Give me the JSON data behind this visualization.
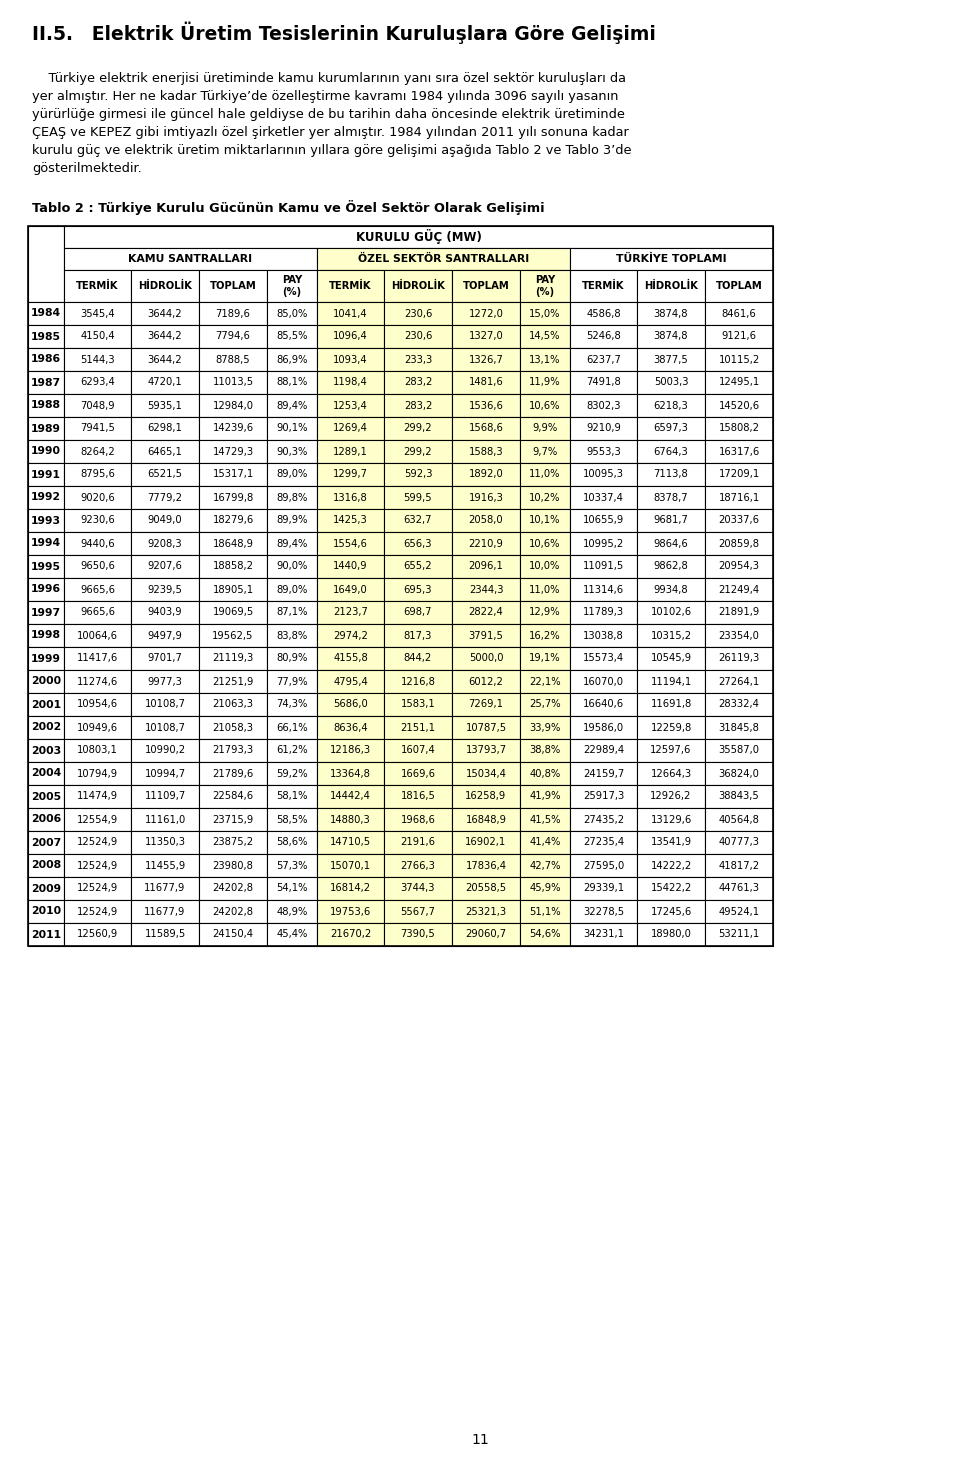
{
  "title": "II.5. Elektrik Üretim Tesislerinin Kuruluşlara Göre Gelişimi",
  "para1": "    Türkiye elektrik enerjisi üretiminde kamu kurumlarının yanı sıra özel sektör kuruluşları da",
  "para2": "yer almıştır. Her ne kadar Türkiye’de özelleştirme kavramı 1984 yılında 3096 sayılı yasanın",
  "para3": "yürürlüğe girmesi ile güncel hale geldiyse de bu tarihin daha öncesinde elektrik üretiminde",
  "para4": "ÇEAŞ ve KEPEZ gibi imtiyazlı özel şirketler yer almıştır. 1984 yılından 2011 yılı sonuna kadar",
  "para5": "kurulu güç ve elektrik üretim miktarlarının yıllara göre gelişimi aşağıda Tablo 2 ve Tablo 3’de",
  "para6": "gösterilmektedir.",
  "table_title": "Tablo 2 : Türkiye Kurulu Gücünün Kamu ve Özel Sektör Olarak Gelişimi",
  "header_main": "KURULU GÜÇ (MW)",
  "header_kamu": "KAMU SANTRALLARI",
  "header_ozel": "ÖZEL SEKTÖR SANTRALLARI",
  "header_turkiye": "TÜRKİYE TOPLAMI",
  "years": [
    1984,
    1985,
    1986,
    1987,
    1988,
    1989,
    1990,
    1991,
    1992,
    1993,
    1994,
    1995,
    1996,
    1997,
    1998,
    1999,
    2000,
    2001,
    2002,
    2003,
    2004,
    2005,
    2006,
    2007,
    2008,
    2009,
    2010,
    2011
  ],
  "data": [
    [
      "3545,4",
      "3644,2",
      "7189,6",
      "85,0%",
      "1041,4",
      "230,6",
      "1272,0",
      "15,0%",
      "4586,8",
      "3874,8",
      "8461,6"
    ],
    [
      "4150,4",
      "3644,2",
      "7794,6",
      "85,5%",
      "1096,4",
      "230,6",
      "1327,0",
      "14,5%",
      "5246,8",
      "3874,8",
      "9121,6"
    ],
    [
      "5144,3",
      "3644,2",
      "8788,5",
      "86,9%",
      "1093,4",
      "233,3",
      "1326,7",
      "13,1%",
      "6237,7",
      "3877,5",
      "10115,2"
    ],
    [
      "6293,4",
      "4720,1",
      "11013,5",
      "88,1%",
      "1198,4",
      "283,2",
      "1481,6",
      "11,9%",
      "7491,8",
      "5003,3",
      "12495,1"
    ],
    [
      "7048,9",
      "5935,1",
      "12984,0",
      "89,4%",
      "1253,4",
      "283,2",
      "1536,6",
      "10,6%",
      "8302,3",
      "6218,3",
      "14520,6"
    ],
    [
      "7941,5",
      "6298,1",
      "14239,6",
      "90,1%",
      "1269,4",
      "299,2",
      "1568,6",
      "9,9%",
      "9210,9",
      "6597,3",
      "15808,2"
    ],
    [
      "8264,2",
      "6465,1",
      "14729,3",
      "90,3%",
      "1289,1",
      "299,2",
      "1588,3",
      "9,7%",
      "9553,3",
      "6764,3",
      "16317,6"
    ],
    [
      "8795,6",
      "6521,5",
      "15317,1",
      "89,0%",
      "1299,7",
      "592,3",
      "1892,0",
      "11,0%",
      "10095,3",
      "7113,8",
      "17209,1"
    ],
    [
      "9020,6",
      "7779,2",
      "16799,8",
      "89,8%",
      "1316,8",
      "599,5",
      "1916,3",
      "10,2%",
      "10337,4",
      "8378,7",
      "18716,1"
    ],
    [
      "9230,6",
      "9049,0",
      "18279,6",
      "89,9%",
      "1425,3",
      "632,7",
      "2058,0",
      "10,1%",
      "10655,9",
      "9681,7",
      "20337,6"
    ],
    [
      "9440,6",
      "9208,3",
      "18648,9",
      "89,4%",
      "1554,6",
      "656,3",
      "2210,9",
      "10,6%",
      "10995,2",
      "9864,6",
      "20859,8"
    ],
    [
      "9650,6",
      "9207,6",
      "18858,2",
      "90,0%",
      "1440,9",
      "655,2",
      "2096,1",
      "10,0%",
      "11091,5",
      "9862,8",
      "20954,3"
    ],
    [
      "9665,6",
      "9239,5",
      "18905,1",
      "89,0%",
      "1649,0",
      "695,3",
      "2344,3",
      "11,0%",
      "11314,6",
      "9934,8",
      "21249,4"
    ],
    [
      "9665,6",
      "9403,9",
      "19069,5",
      "87,1%",
      "2123,7",
      "698,7",
      "2822,4",
      "12,9%",
      "11789,3",
      "10102,6",
      "21891,9"
    ],
    [
      "10064,6",
      "9497,9",
      "19562,5",
      "83,8%",
      "2974,2",
      "817,3",
      "3791,5",
      "16,2%",
      "13038,8",
      "10315,2",
      "23354,0"
    ],
    [
      "11417,6",
      "9701,7",
      "21119,3",
      "80,9%",
      "4155,8",
      "844,2",
      "5000,0",
      "19,1%",
      "15573,4",
      "10545,9",
      "26119,3"
    ],
    [
      "11274,6",
      "9977,3",
      "21251,9",
      "77,9%",
      "4795,4",
      "1216,8",
      "6012,2",
      "22,1%",
      "16070,0",
      "11194,1",
      "27264,1"
    ],
    [
      "10954,6",
      "10108,7",
      "21063,3",
      "74,3%",
      "5686,0",
      "1583,1",
      "7269,1",
      "25,7%",
      "16640,6",
      "11691,8",
      "28332,4"
    ],
    [
      "10949,6",
      "10108,7",
      "21058,3",
      "66,1%",
      "8636,4",
      "2151,1",
      "10787,5",
      "33,9%",
      "19586,0",
      "12259,8",
      "31845,8"
    ],
    [
      "10803,1",
      "10990,2",
      "21793,3",
      "61,2%",
      "12186,3",
      "1607,4",
      "13793,7",
      "38,8%",
      "22989,4",
      "12597,6",
      "35587,0"
    ],
    [
      "10794,9",
      "10994,7",
      "21789,6",
      "59,2%",
      "13364,8",
      "1669,6",
      "15034,4",
      "40,8%",
      "24159,7",
      "12664,3",
      "36824,0"
    ],
    [
      "11474,9",
      "11109,7",
      "22584,6",
      "58,1%",
      "14442,4",
      "1816,5",
      "16258,9",
      "41,9%",
      "25917,3",
      "12926,2",
      "38843,5"
    ],
    [
      "12554,9",
      "11161,0",
      "23715,9",
      "58,5%",
      "14880,3",
      "1968,6",
      "16848,9",
      "41,5%",
      "27435,2",
      "13129,6",
      "40564,8"
    ],
    [
      "12524,9",
      "11350,3",
      "23875,2",
      "58,6%",
      "14710,5",
      "2191,6",
      "16902,1",
      "41,4%",
      "27235,4",
      "13541,9",
      "40777,3"
    ],
    [
      "12524,9",
      "11455,9",
      "23980,8",
      "57,3%",
      "15070,1",
      "2766,3",
      "17836,4",
      "42,7%",
      "27595,0",
      "14222,2",
      "41817,2"
    ],
    [
      "12524,9",
      "11677,9",
      "24202,8",
      "54,1%",
      "16814,2",
      "3744,3",
      "20558,5",
      "45,9%",
      "29339,1",
      "15422,2",
      "44761,3"
    ],
    [
      "12524,9",
      "11677,9",
      "24202,8",
      "48,9%",
      "19753,6",
      "5567,7",
      "25321,3",
      "51,1%",
      "32278,5",
      "17245,6",
      "49524,1"
    ],
    [
      "12560,9",
      "11589,5",
      "24150,4",
      "45,4%",
      "21670,2",
      "7390,5",
      "29060,7",
      "54,6%",
      "34231,1",
      "18980,0",
      "53211,1"
    ]
  ],
  "page_number": "11"
}
